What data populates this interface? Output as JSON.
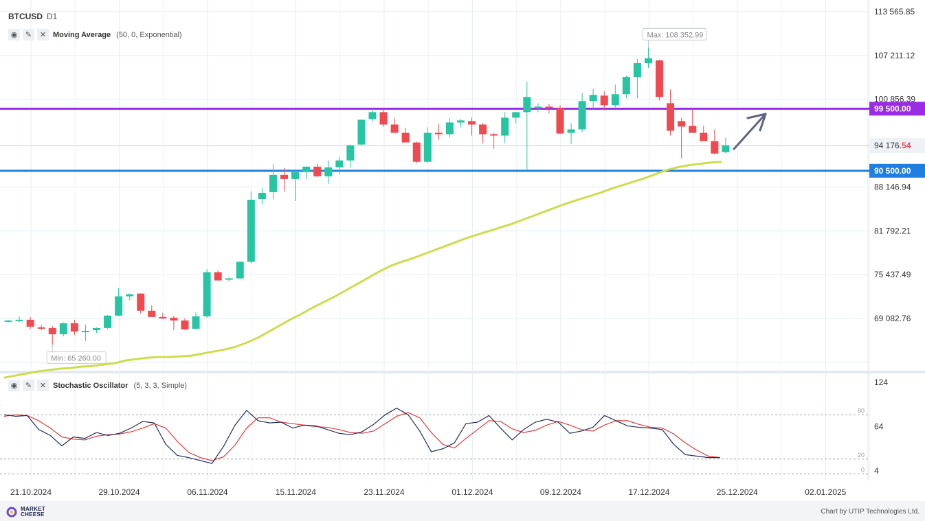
{
  "header": {
    "symbol": "BTCUSD",
    "timeframe": "D1"
  },
  "indicators": {
    "ma": {
      "name": "Moving Average",
      "params": "(50, 0, Exponential)"
    },
    "stoch": {
      "name": "Stochastic Oscillator",
      "params": "(5, 3, 3, Simple)"
    }
  },
  "footer": {
    "brand_line1": "MARKET",
    "brand_line2": "CHEESE",
    "credit": "Chart by UTIP Technologies Ltd."
  },
  "colors": {
    "bull": "#26c6a4",
    "bear": "#ef4a4f",
    "ma": "#cddd4a",
    "resistance": "#9b2ce6",
    "support": "#1f7fe0",
    "stoch_k": "#1f2a5c",
    "stoch_d": "#e53935"
  },
  "chart_data": [
    {
      "type": "candlestick",
      "title": "BTCUSD D1",
      "y_ticks": [
        "113 565.85",
        "107 211.12",
        "100 856.39",
        "88 146.94",
        "81 792.21",
        "75 437.49",
        "69 082.76"
      ],
      "x_ticks": [
        "21.10.2024",
        "29.10.2024",
        "06.11.2024",
        "15.11.2024",
        "23.11.2024",
        "01.12.2024",
        "09.12.2024",
        "17.12.2024",
        "25.12.2024",
        "02.01.2025"
      ],
      "first_date": "21.10.2024",
      "last_price": "94 176.",
      "last_price_suffix": "54",
      "max_label": "Max: 108 352.99",
      "min_label": "Min: 65 260.00",
      "levels": [
        {
          "label": "99 500.00",
          "value": 99500,
          "color": "#9b2ce6"
        },
        {
          "label": "90 500.00",
          "value": 90500,
          "color": "#1f7fe0"
        }
      ],
      "candles": [
        [
          68700,
          68900,
          68500,
          68800
        ],
        [
          68800,
          69400,
          68600,
          68900
        ],
        [
          68900,
          69300,
          67600,
          67900
        ],
        [
          67800,
          68200,
          67400,
          67700
        ],
        [
          67700,
          68000,
          65260,
          66800
        ],
        [
          66800,
          68500,
          66500,
          68400
        ],
        [
          68400,
          68900,
          66700,
          67200
        ],
        [
          67200,
          68200,
          65800,
          67300
        ],
        [
          67400,
          67800,
          67000,
          67700
        ],
        [
          67700,
          69600,
          67600,
          69500
        ],
        [
          69500,
          73500,
          69400,
          72300
        ],
        [
          72300,
          72700,
          71700,
          72600
        ],
        [
          72700,
          72700,
          69800,
          70200
        ],
        [
          70200,
          71000,
          69400,
          69300
        ],
        [
          69300,
          69900,
          69000,
          69200
        ],
        [
          69200,
          69500,
          67400,
          68800
        ],
        [
          68800,
          69100,
          67400,
          67500
        ],
        [
          67600,
          70000,
          67500,
          69400
        ],
        [
          69400,
          76200,
          69200,
          75800
        ],
        [
          75800,
          76100,
          74600,
          74600
        ],
        [
          74700,
          75100,
          74400,
          74900
        ],
        [
          74900,
          77400,
          74800,
          77300
        ],
        [
          77300,
          87500,
          77100,
          86300
        ],
        [
          86400,
          88000,
          85600,
          87300
        ],
        [
          87400,
          91500,
          86400,
          89900
        ],
        [
          89900,
          90900,
          87500,
          89300
        ],
        [
          89300,
          90700,
          86100,
          90300
        ],
        [
          90300,
          91100,
          89300,
          91100
        ],
        [
          91100,
          91500,
          89600,
          89700
        ],
        [
          89700,
          92000,
          88600,
          91000
        ],
        [
          91000,
          92500,
          90000,
          92000
        ],
        [
          92000,
          94300,
          91000,
          94200
        ],
        [
          94300,
          97900,
          94100,
          97900
        ],
        [
          98000,
          99500,
          97600,
          99000
        ],
        [
          99000,
          99600,
          96900,
          97200
        ],
        [
          97200,
          98100,
          96000,
          96000
        ],
        [
          96000,
          96700,
          94600,
          94600
        ],
        [
          94600,
          94700,
          91600,
          91800
        ],
        [
          91800,
          96800,
          91700,
          96000
        ],
        [
          96000,
          97300,
          95000,
          95800
        ],
        [
          95800,
          98100,
          95300,
          97500
        ],
        [
          97500,
          98000,
          96800,
          97800
        ],
        [
          97700,
          98200,
          95600,
          97200
        ],
        [
          97200,
          97400,
          94500,
          95800
        ],
        [
          95800,
          96000,
          93700,
          95600
        ],
        [
          95600,
          99000,
          94500,
          98200
        ],
        [
          98200,
          99000,
          97400,
          99000
        ],
        [
          99000,
          103400,
          90500,
          101200
        ],
        [
          99600,
          100300,
          99000,
          99800
        ],
        [
          99800,
          100200,
          98800,
          99600
        ],
        [
          99600,
          100000,
          95800,
          95900
        ],
        [
          96000,
          97400,
          94400,
          96500
        ],
        [
          96500,
          101800,
          96100,
          100600
        ],
        [
          100600,
          102400,
          99500,
          101500
        ],
        [
          101400,
          102000,
          99300,
          100000
        ],
        [
          100000,
          103000,
          99700,
          101600
        ],
        [
          101600,
          104300,
          101000,
          104100
        ],
        [
          104100,
          106700,
          101000,
          106100
        ],
        [
          106100,
          108353,
          105400,
          106800
        ],
        [
          106500,
          106600,
          100700,
          101200
        ],
        [
          100300,
          102300,
          95600,
          96300
        ],
        [
          97700,
          98200,
          92300,
          96900
        ],
        [
          97000,
          99500,
          96000,
          96000
        ],
        [
          96000,
          97000,
          95000,
          94800
        ],
        [
          94800,
          96500,
          92900,
          93000
        ],
        [
          93200,
          95300,
          93000,
          94200
        ]
      ],
      "ma_series": [
        {
          "name": "Moving Average",
          "values": [
            60500,
            60800,
            61100,
            61400,
            61600,
            61800,
            61900,
            62100,
            62200,
            62400,
            62600,
            63000,
            63200,
            63400,
            63500,
            63500,
            63600,
            63700,
            64000,
            64300,
            64600,
            65000,
            65600,
            66300,
            67200,
            68100,
            69000,
            69800,
            70700,
            71500,
            72300,
            73200,
            74100,
            75000,
            75900,
            76700,
            77300,
            77800,
            78400,
            79000,
            79600,
            80200,
            80800,
            81300,
            81800,
            82300,
            82800,
            83400,
            84000,
            84600,
            85200,
            85800,
            86300,
            86800,
            87300,
            87900,
            88400,
            88900,
            89400,
            90000,
            90600,
            91000,
            91300,
            91500,
            91700,
            91800
          ]
        }
      ],
      "stochastic": {
        "y_ticks": [
          "124",
          "64",
          "4"
        ],
        "levels": [
          "80",
          "20",
          "0"
        ],
        "k": [
          80,
          78,
          79,
          60,
          52,
          38,
          50,
          48,
          56,
          52,
          55,
          62,
          71,
          69,
          40,
          25,
          22,
          18,
          14,
          37,
          66,
          86,
          72,
          69,
          70,
          62,
          66,
          65,
          60,
          55,
          53,
          57,
          67,
          80,
          89,
          80,
          58,
          30,
          34,
          42,
          68,
          70,
          79,
          62,
          46,
          60,
          70,
          74,
          70,
          55,
          58,
          63,
          79,
          72,
          65,
          63,
          62,
          60,
          40,
          26,
          24,
          22,
          22
        ],
        "d": [
          78,
          80,
          79,
          72,
          62,
          50,
          47,
          46,
          51,
          53,
          54,
          57,
          62,
          68,
          62,
          44,
          29,
          22,
          18,
          23,
          39,
          62,
          76,
          76,
          70,
          68,
          66,
          64,
          63,
          60,
          56,
          55,
          58,
          68,
          78,
          83,
          76,
          56,
          40,
          35,
          48,
          60,
          72,
          71,
          61,
          56,
          59,
          66,
          71,
          66,
          60,
          58,
          66,
          72,
          72,
          67,
          63,
          62,
          54,
          42,
          32,
          24,
          22
        ]
      }
    }
  ]
}
